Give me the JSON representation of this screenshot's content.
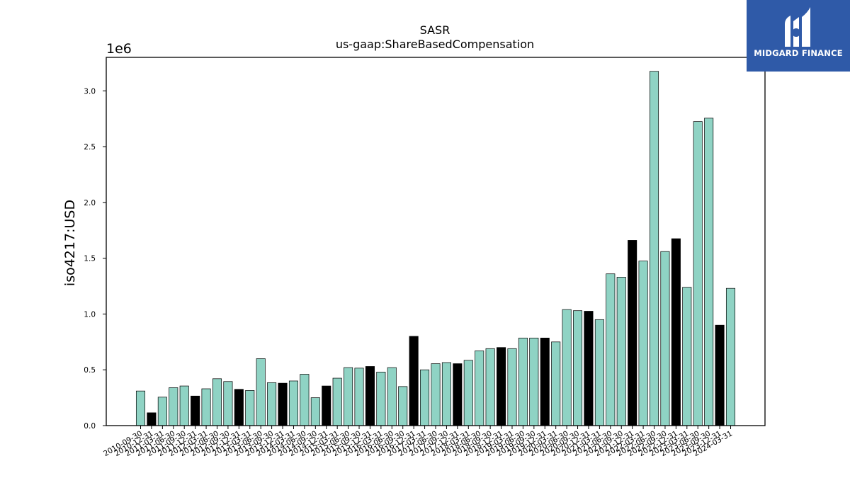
{
  "brand": {
    "name": "MIDGARD FINANCE",
    "bg_color": "#2f5aa8"
  },
  "chart_data": {
    "type": "bar",
    "title": "SASR",
    "subtitle": "us-gaap:ShareBasedCompensation",
    "ylabel": "iso4217:USD",
    "xlabel": "",
    "y_offset_label": "1e6",
    "ylim": [
      0,
      3300000
    ],
    "y_ticks": [
      0,
      500000,
      1000000,
      1500000,
      2000000,
      2500000,
      3000000
    ],
    "y_tick_labels": [
      "0.0",
      "0.5",
      "1.0",
      "1.5",
      "2.0",
      "2.5",
      "3.0"
    ],
    "grid": false,
    "colors": {
      "normal": "#8fd3c4",
      "highlight": "#000000",
      "edge": "#000000"
    },
    "x_tick_labels": [
      "2010-09-30",
      "2010-12-31",
      "2011-03-31",
      "2011-06-30",
      "2011-09-30",
      "2011-12-31",
      "2012-03-31",
      "2012-06-30",
      "2012-09-30",
      "2012-12-31",
      "2013-03-31",
      "2013-06-30",
      "2013-09-30",
      "2013-12-31",
      "2014-03-31",
      "2014-06-30",
      "2014-09-30",
      "2014-12-31",
      "2015-03-31",
      "2015-06-30",
      "2015-09-30",
      "2015-12-31",
      "2016-03-31",
      "2016-06-30",
      "2016-09-30",
      "2016-12-31",
      "2017-03-31",
      "2017-06-30",
      "2017-09-30",
      "2017-12-31",
      "2018-03-31",
      "2018-06-30",
      "2018-09-30",
      "2018-12-31",
      "2019-03-31",
      "2019-06-30",
      "2019-09-30",
      "2019-12-31",
      "2020-03-31",
      "2020-06-30",
      "2020-09-30",
      "2020-12-31",
      "2021-03-31",
      "2021-06-30",
      "2021-09-30",
      "2021-12-31",
      "2022-03-31",
      "2022-06-30",
      "2022-09-30",
      "2022-12-31",
      "2023-03-31",
      "2023-06-30",
      "2023-09-30",
      "2023-12-31",
      "2024-03-31"
    ],
    "values": [
      310000,
      115000,
      255000,
      340000,
      355000,
      265000,
      330000,
      420000,
      395000,
      325000,
      315000,
      600000,
      385000,
      380000,
      400000,
      460000,
      250000,
      355000,
      425000,
      520000,
      515000,
      530000,
      480000,
      520000,
      350000,
      800000,
      500000,
      555000,
      565000,
      555000,
      585000,
      670000,
      690000,
      700000,
      690000,
      785000,
      785000,
      785000,
      750000,
      1040000,
      1030000,
      1025000,
      950000,
      1360000,
      1330000,
      1660000,
      1475000,
      3175000,
      1560000,
      1675000,
      1240000,
      2725000,
      2755000,
      900000,
      1230000
    ],
    "highlight": [
      false,
      true,
      false,
      false,
      false,
      true,
      false,
      false,
      false,
      true,
      false,
      false,
      false,
      true,
      false,
      false,
      false,
      true,
      false,
      false,
      false,
      true,
      false,
      false,
      false,
      true,
      false,
      false,
      false,
      true,
      false,
      false,
      false,
      true,
      false,
      false,
      false,
      true,
      false,
      false,
      false,
      true,
      false,
      false,
      false,
      true,
      false,
      false,
      false,
      true,
      false,
      false,
      false,
      true,
      false
    ]
  }
}
